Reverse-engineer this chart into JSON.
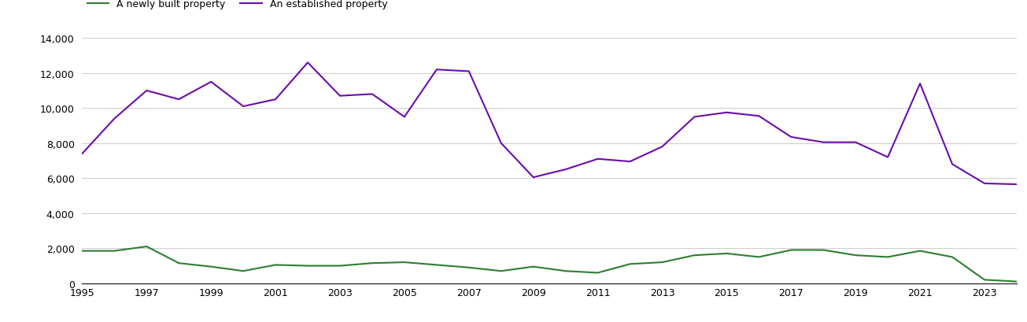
{
  "years": [
    1995,
    1996,
    1997,
    1998,
    1999,
    2000,
    2001,
    2002,
    2003,
    2004,
    2005,
    2006,
    2007,
    2008,
    2009,
    2010,
    2011,
    2012,
    2013,
    2014,
    2015,
    2016,
    2017,
    2018,
    2019,
    2020,
    2021,
    2022,
    2023,
    2024
  ],
  "new_homes": [
    1850,
    1850,
    2100,
    1150,
    950,
    700,
    1050,
    1000,
    1000,
    1150,
    1200,
    1050,
    900,
    700,
    950,
    700,
    600,
    1100,
    1200,
    1600,
    1700,
    1500,
    1900,
    1900,
    1600,
    1500,
    1850,
    1500,
    200,
    100
  ],
  "established_homes": [
    7400,
    9400,
    11000,
    10500,
    11500,
    10100,
    10500,
    12600,
    10700,
    10800,
    9500,
    12200,
    12100,
    8000,
    6050,
    6500,
    7100,
    6950,
    7800,
    9500,
    9750,
    9550,
    8350,
    8050,
    8050,
    7200,
    11400,
    6800,
    5700,
    5650
  ],
  "new_color": "#2e7d32",
  "established_color": "#6a0dad",
  "legend_new": "A newly built property",
  "legend_established": "An established property",
  "ylim": [
    0,
    14000
  ],
  "yticks": [
    0,
    2000,
    4000,
    6000,
    8000,
    10000,
    12000,
    14000
  ],
  "background_color": "#ffffff",
  "grid_color": "#cccccc"
}
